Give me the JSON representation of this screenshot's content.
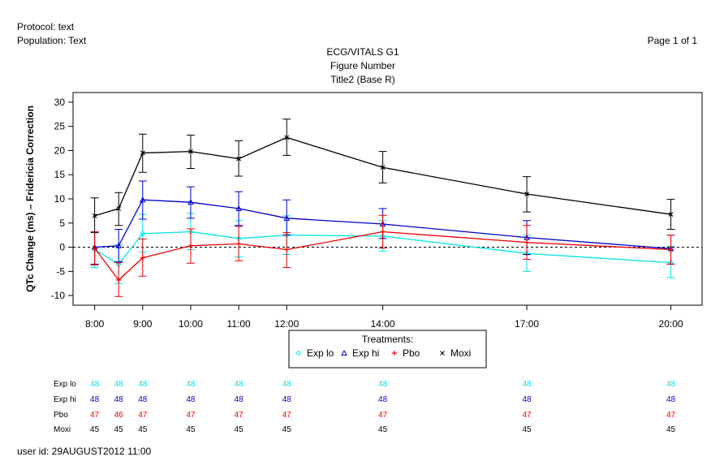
{
  "header": {
    "protocol": "Protocol: text",
    "population": "Population: Text",
    "page": "Page 1 of 1",
    "title1": "ECG/VITALS G1",
    "title2": "Figure Number",
    "title3": "Title2 (Base R)"
  },
  "footer": {
    "user": "user  id:  29AUGUST2012 11:00"
  },
  "chart_data": {
    "type": "line",
    "ylabel": "QTc Change (ms) – Fridericia Correction",
    "xlabel": "",
    "ylim": [
      -12,
      32
    ],
    "yticks": [
      -10,
      -5,
      0,
      5,
      10,
      15,
      20,
      25,
      30
    ],
    "x_times": [
      8.0,
      8.5,
      9.0,
      10.0,
      11.0,
      12.0,
      14.0,
      17.0,
      20.0
    ],
    "xticks": [
      {
        "t": 8,
        "label": "8:00"
      },
      {
        "t": 9,
        "label": "9:00"
      },
      {
        "t": 10,
        "label": "10:00"
      },
      {
        "t": 11,
        "label": "11:00"
      },
      {
        "t": 12,
        "label": "12:00"
      },
      {
        "t": 14,
        "label": "14:00"
      },
      {
        "t": 17,
        "label": "17:00"
      },
      {
        "t": 20,
        "label": "20:00"
      }
    ],
    "reference_line": 0,
    "legend": {
      "title": "Treatments:",
      "placement": "bottom-center",
      "entries": [
        "Exp lo",
        "Exp hi",
        "Pbo",
        "Moxi"
      ]
    },
    "series": [
      {
        "name": "Exp lo",
        "color": "#00e5e5",
        "marker": "circle",
        "values": [
          -0.5,
          -3.5,
          2.8,
          3.2,
          1.8,
          2.5,
          2.3,
          -1.3,
          -3.2
        ],
        "lower": [
          -4.2,
          -7.5,
          -1.0,
          -0.5,
          -2.0,
          -1.5,
          -0.8,
          -5.0,
          -6.3
        ],
        "upper": [
          3.2,
          0.5,
          6.8,
          7.0,
          5.5,
          6.5,
          5.5,
          2.5,
          0.2
        ]
      },
      {
        "name": "Exp hi",
        "color": "#0000cc",
        "marker": "triangle",
        "values": [
          0.0,
          0.3,
          9.8,
          9.3,
          8.0,
          6.0,
          4.8,
          2.0,
          -0.3
        ],
        "lower": [
          -3.5,
          -3.0,
          5.8,
          6.0,
          4.5,
          2.5,
          1.8,
          -1.5,
          -3.5
        ],
        "upper": [
          3.2,
          3.7,
          13.7,
          12.5,
          11.5,
          9.8,
          8.0,
          5.5,
          2.5
        ]
      },
      {
        "name": "Pbo",
        "color": "#ee0000",
        "marker": "plus",
        "values": [
          -0.2,
          -6.8,
          -2.2,
          0.3,
          0.7,
          -0.5,
          3.2,
          1.0,
          -0.5
        ],
        "lower": [
          -3.7,
          -10.2,
          -6.0,
          -3.3,
          -2.8,
          -4.2,
          -0.2,
          -2.5,
          -3.5
        ],
        "upper": [
          3.2,
          -3.2,
          1.7,
          3.8,
          4.3,
          3.0,
          6.6,
          4.5,
          2.5
        ]
      },
      {
        "name": "Moxi",
        "color": "#000000",
        "marker": "x",
        "values": [
          6.5,
          8.0,
          19.5,
          19.8,
          18.3,
          22.7,
          16.5,
          11.0,
          6.8
        ],
        "lower": [
          3.0,
          4.5,
          15.5,
          16.3,
          14.7,
          19.0,
          13.3,
          7.3,
          3.7
        ],
        "upper": [
          10.2,
          11.3,
          23.4,
          23.2,
          22.0,
          26.5,
          19.8,
          14.6,
          9.9
        ]
      }
    ]
  },
  "n_table": {
    "rows": [
      {
        "label": "Exp lo",
        "color": "#00e5e5",
        "values": [
          "48",
          "48",
          "48",
          "48",
          "48",
          "48",
          "48",
          "48",
          "48"
        ]
      },
      {
        "label": "Exp hi",
        "color": "#0000cc",
        "values": [
          "48",
          "48",
          "48",
          "48",
          "48",
          "48",
          "48",
          "48",
          "48"
        ]
      },
      {
        "label": "Pbo",
        "color": "#ee0000",
        "values": [
          "47",
          "46",
          "47",
          "47",
          "47",
          "47",
          "47",
          "47",
          "47"
        ]
      },
      {
        "label": "Moxi",
        "color": "#000000",
        "values": [
          "45",
          "45",
          "45",
          "45",
          "45",
          "45",
          "45",
          "45",
          "45"
        ]
      }
    ]
  }
}
